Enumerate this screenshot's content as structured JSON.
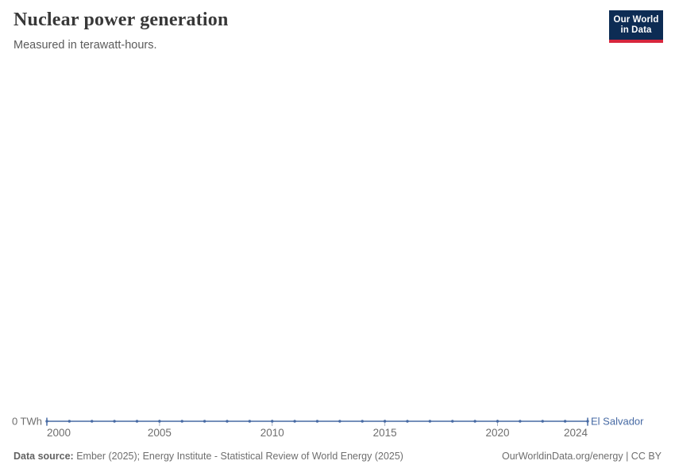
{
  "header": {
    "title": "Nuclear power generation",
    "subtitle": "Measured in terawatt-hours.",
    "logo": {
      "line1": "Our World",
      "line2": "in Data",
      "bg_color": "#0d2c54",
      "bar_color": "#d7263d"
    }
  },
  "chart_data": {
    "type": "line",
    "title": "Nuclear power generation",
    "unit": "terawatt-hours",
    "x": [
      2000,
      2001,
      2002,
      2003,
      2004,
      2005,
      2006,
      2007,
      2008,
      2009,
      2010,
      2011,
      2012,
      2013,
      2014,
      2015,
      2016,
      2017,
      2018,
      2019,
      2020,
      2021,
      2022,
      2023,
      2024
    ],
    "series": [
      {
        "name": "El Salvador",
        "color": "#476aa4",
        "values": [
          0,
          0,
          0,
          0,
          0,
          0,
          0,
          0,
          0,
          0,
          0,
          0,
          0,
          0,
          0,
          0,
          0,
          0,
          0,
          0,
          0,
          0,
          0,
          0,
          0
        ]
      }
    ],
    "x_ticks": [
      {
        "value": 2000,
        "label": "2000"
      },
      {
        "value": 2005,
        "label": "2005"
      },
      {
        "value": 2010,
        "label": "2010"
      },
      {
        "value": 2015,
        "label": "2015"
      },
      {
        "value": 2020,
        "label": "2020"
      },
      {
        "value": 2024,
        "label": "2024"
      }
    ],
    "y_ticks": [
      {
        "value": 0,
        "label": "0 TWh"
      }
    ],
    "xlim": [
      2000,
      2024
    ],
    "ylim": [
      0,
      1
    ],
    "grid": false,
    "legend_position": "end-of-line",
    "entity_label": "El Salvador"
  },
  "footer": {
    "source_label": "Data source:",
    "source_text": " Ember (2025); Energy Institute - Statistical Review of World Energy (2025)",
    "link_text": "OurWorldinData.org/energy | CC BY"
  },
  "colors": {
    "line": "#476aa4",
    "axis_text": "#6e6e6e",
    "tick_mark": "#a9b2c2"
  }
}
